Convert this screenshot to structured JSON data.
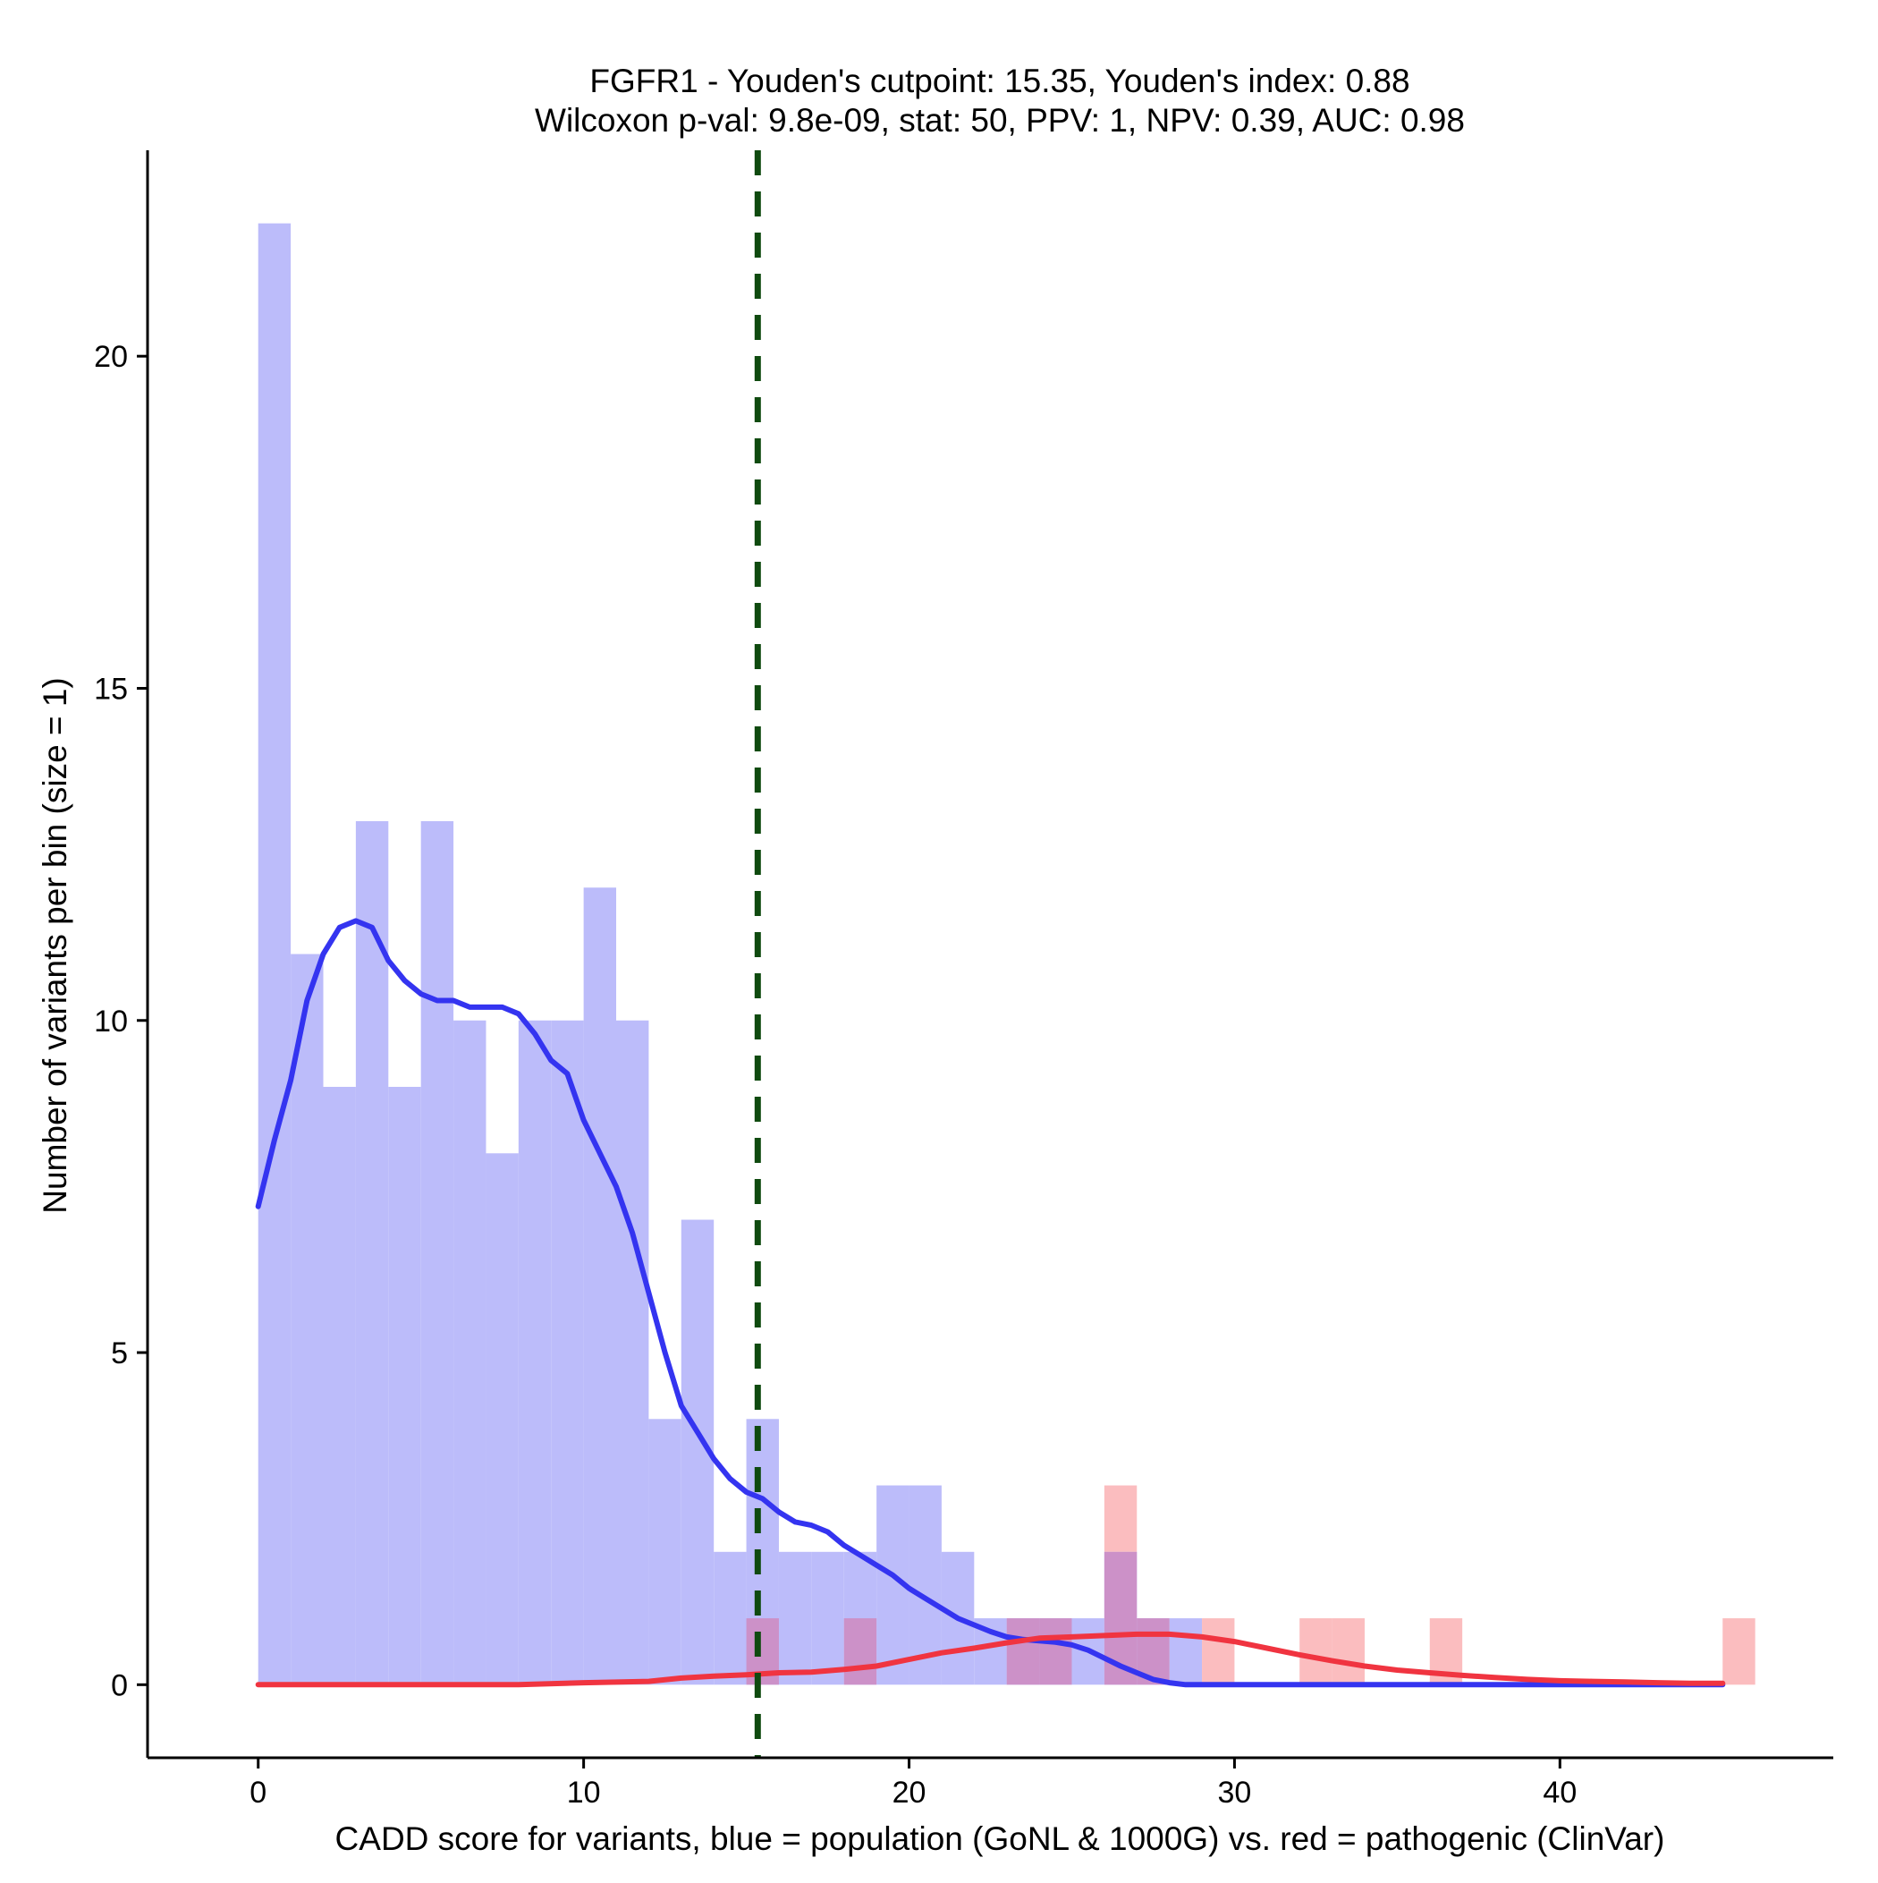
{
  "chart_data": {
    "type": "bar",
    "title_line1": "FGFR1 - Youden's cutpoint: 15.35, Youden's index: 0.88",
    "title_line2": "Wilcoxon p-val: 9.8e-09, stat: 50, PPV: 1, NPV: 0.39, AUC: 0.98",
    "xlabel": "CADD score for variants, blue = population (GoNL & 1000G) vs. red = pathogenic (ClinVar)",
    "ylabel": "Number of variants per bin (size = 1)",
    "xlim": [
      -3.4,
      48.4
    ],
    "ylim": [
      -1.1,
      23.1
    ],
    "xticks": [
      0,
      10,
      20,
      30,
      40
    ],
    "yticks": [
      0,
      5,
      10,
      15,
      20
    ],
    "bin_width": 1,
    "cutpoint": 15.35,
    "colors": {
      "population": "#bcbcfa",
      "pathogenic": "#fbbdbf",
      "overlap": "#cc91c8",
      "population_density": "#3434f0",
      "pathogenic_density": "#f03440",
      "cutpoint_line": "#0f4a0f"
    },
    "series": [
      {
        "name": "population (GoNL & 1000G)",
        "bin_starts": [
          0,
          1,
          2,
          3,
          4,
          5,
          6,
          7,
          8,
          9,
          10,
          11,
          12,
          13,
          14,
          15,
          16,
          17,
          18,
          19,
          20,
          21,
          22,
          23,
          24,
          25,
          26,
          27,
          28,
          29,
          30,
          31,
          32,
          33,
          34,
          35,
          36,
          37,
          38,
          39,
          40,
          41,
          42,
          43,
          44,
          45
        ],
        "counts": [
          22,
          11,
          9,
          13,
          9,
          13,
          10,
          8,
          10,
          10,
          12,
          10,
          4,
          7,
          2,
          4,
          2,
          2,
          2,
          3,
          3,
          2,
          1,
          1,
          1,
          1,
          2,
          1,
          1,
          0,
          0,
          0,
          0,
          0,
          0,
          0,
          0,
          0,
          0,
          0,
          0,
          0,
          0,
          0,
          0,
          0
        ]
      },
      {
        "name": "pathogenic (ClinVar)",
        "bin_starts": [
          0,
          1,
          2,
          3,
          4,
          5,
          6,
          7,
          8,
          9,
          10,
          11,
          12,
          13,
          14,
          15,
          16,
          17,
          18,
          19,
          20,
          21,
          22,
          23,
          24,
          25,
          26,
          27,
          28,
          29,
          30,
          31,
          32,
          33,
          34,
          35,
          36,
          37,
          38,
          39,
          40,
          41,
          42,
          43,
          44,
          45
        ],
        "counts": [
          0,
          0,
          0,
          0,
          0,
          0,
          0,
          0,
          0,
          0,
          0,
          0,
          0,
          0,
          0,
          1,
          0,
          0,
          1,
          0,
          0,
          0,
          0,
          1,
          1,
          0,
          3,
          1,
          0,
          1,
          0,
          0,
          1,
          1,
          0,
          0,
          1,
          0,
          0,
          0,
          0,
          0,
          0,
          0,
          0,
          1
        ]
      }
    ],
    "density_curves": [
      {
        "name": "population density",
        "x": [
          0,
          0.5,
          1,
          1.5,
          2,
          2.5,
          3,
          3.5,
          4,
          4.5,
          5,
          5.5,
          6,
          6.5,
          7,
          7.5,
          8,
          8.5,
          9,
          9.5,
          10,
          10.5,
          11,
          11.5,
          12,
          12.5,
          13,
          13.5,
          14,
          14.5,
          15,
          15.5,
          16,
          16.5,
          17,
          17.5,
          18,
          18.5,
          19,
          19.5,
          20,
          20.5,
          21,
          21.5,
          22,
          22.5,
          23,
          23.5,
          24,
          24.5,
          25,
          25.5,
          26,
          26.5,
          27,
          27.5,
          28,
          28.5,
          29,
          29.5,
          30,
          30.5,
          31,
          31.5,
          32,
          32.5,
          33,
          33.5,
          34,
          35,
          36,
          37,
          38,
          39,
          40,
          41,
          42,
          43,
          44,
          45
        ],
        "y": [
          7.2,
          8.2,
          9.1,
          10.3,
          11.0,
          11.4,
          11.5,
          11.4,
          10.9,
          10.6,
          10.4,
          10.3,
          10.3,
          10.2,
          10.2,
          10.2,
          10.1,
          9.8,
          9.4,
          9.2,
          8.5,
          8.0,
          7.5,
          6.8,
          5.9,
          5.0,
          4.2,
          3.8,
          3.4,
          3.1,
          2.9,
          2.8,
          2.6,
          2.45,
          2.4,
          2.3,
          2.1,
          1.95,
          1.8,
          1.65,
          1.45,
          1.3,
          1.15,
          1.0,
          0.9,
          0.8,
          0.72,
          0.68,
          0.66,
          0.64,
          0.6,
          0.52,
          0.4,
          0.28,
          0.18,
          0.08,
          0.03,
          0.0,
          0.0,
          0.0,
          0.0,
          0.0,
          0.0,
          0.0,
          0.0,
          0.0,
          0.0,
          0.0,
          0.0,
          0.0,
          0.0,
          0.0,
          0.0,
          0.0,
          0.0,
          0.0,
          0.0,
          0.0,
          0.0,
          0.0
        ]
      },
      {
        "name": "pathogenic density",
        "x": [
          0,
          2,
          4,
          6,
          8,
          10,
          12,
          13,
          14,
          15,
          16,
          17,
          18,
          19,
          20,
          21,
          22,
          23,
          24,
          25,
          26,
          27,
          28,
          29,
          30,
          31,
          32,
          33,
          34,
          35,
          36,
          37,
          38,
          39,
          40,
          41,
          42,
          43,
          44,
          45
        ],
        "y": [
          0.0,
          0.0,
          0.0,
          0.0,
          0.0,
          0.03,
          0.05,
          0.1,
          0.13,
          0.15,
          0.18,
          0.19,
          0.23,
          0.28,
          0.38,
          0.48,
          0.55,
          0.63,
          0.7,
          0.72,
          0.74,
          0.76,
          0.76,
          0.72,
          0.65,
          0.55,
          0.45,
          0.36,
          0.28,
          0.22,
          0.18,
          0.14,
          0.11,
          0.08,
          0.06,
          0.05,
          0.04,
          0.03,
          0.02,
          0.02
        ]
      }
    ]
  }
}
